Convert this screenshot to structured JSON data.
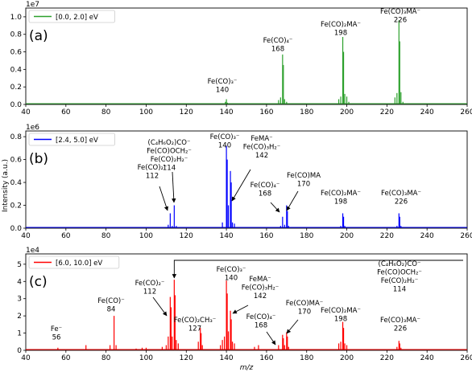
{
  "chart_data": [
    {
      "type": "line",
      "panel_label": "(a)",
      "legend": "[0.0, 2.0] eV",
      "color": "#2ca02c",
      "multiplier": "1e7",
      "ylim": [
        0,
        11000000.0
      ],
      "yticks": [
        "0.0",
        "0.2",
        "0.4",
        "0.6",
        "0.8",
        "1.0"
      ],
      "xlim": [
        40,
        260
      ],
      "xticks": [
        "40",
        "60",
        "80",
        "100",
        "120",
        "140",
        "160",
        "180",
        "200",
        "220",
        "240",
        "260"
      ],
      "peaks": [
        [
          139.5,
          300000.0
        ],
        [
          140,
          600000.0
        ],
        [
          140.5,
          200000.0
        ],
        [
          166,
          500000.0
        ],
        [
          167,
          800000.0
        ],
        [
          168,
          5700000.0
        ],
        [
          168.4,
          4500000.0
        ],
        [
          169,
          600000.0
        ],
        [
          170,
          300000.0
        ],
        [
          196,
          600000.0
        ],
        [
          197,
          900000.0
        ],
        [
          198,
          7700000.0
        ],
        [
          198.4,
          6000000.0
        ],
        [
          199,
          1200000.0
        ],
        [
          200,
          900000.0
        ],
        [
          201,
          300000.0
        ],
        [
          224,
          800000.0
        ],
        [
          225,
          1300000.0
        ],
        [
          226,
          9600000.0
        ],
        [
          226.4,
          7200000.0
        ],
        [
          227,
          1400000.0
        ],
        [
          228,
          300000.0
        ]
      ],
      "annotations": [
        {
          "lines": [
            "Fe(CO)₃⁻",
            "140"
          ]
        },
        {
          "lines": [
            "Fe(CO)₄⁻",
            "168"
          ]
        },
        {
          "lines": [
            "Fe(CO)₂MA⁻",
            "198"
          ]
        },
        {
          "lines": [
            "Fe(CO)₃MA⁻",
            "226"
          ]
        }
      ]
    },
    {
      "type": "line",
      "panel_label": "(b)",
      "legend": "[2.4, 5.0] eV",
      "color": "#0000ff",
      "multiplier": "1e6",
      "ylim": [
        0,
        850000.0
      ],
      "yticks": [
        "0.0",
        "0.2",
        "0.4",
        "0.6",
        "0.8"
      ],
      "xlim": [
        40,
        260
      ],
      "xticks": [
        "40",
        "60",
        "80",
        "100",
        "120",
        "140",
        "160",
        "180",
        "200",
        "220",
        "240",
        "260"
      ],
      "peaks": [
        [
          84,
          10000.0
        ],
        [
          111,
          30000.0
        ],
        [
          112,
          130000.0
        ],
        [
          113,
          20000.0
        ],
        [
          114,
          200000.0
        ],
        [
          115,
          20000.0
        ],
        [
          138,
          50000.0
        ],
        [
          140,
          720000.0
        ],
        [
          140.4,
          600000.0
        ],
        [
          141,
          200000.0
        ],
        [
          142,
          500000.0
        ],
        [
          142.4,
          400000.0
        ],
        [
          143,
          50000.0
        ],
        [
          144,
          40000.0
        ],
        [
          167,
          20000.0
        ],
        [
          168,
          100000.0
        ],
        [
          169,
          30000.0
        ],
        [
          170,
          200000.0
        ],
        [
          170.4,
          150000.0
        ],
        [
          171,
          20000.0
        ],
        [
          197,
          20000.0
        ],
        [
          198,
          130000.0
        ],
        [
          198.4,
          100000.0
        ],
        [
          199,
          20000.0
        ],
        [
          225,
          20000.0
        ],
        [
          226,
          130000.0
        ],
        [
          226.4,
          100000.0
        ],
        [
          227,
          20000.0
        ]
      ],
      "annotations": [
        {
          "lines": [
            "(C₄H₆O₂)CO⁻",
            "Fe(CO)OCH₂⁻",
            "Fe(CO)₂H₂⁻",
            "114"
          ]
        },
        {
          "lines": [
            "Fe(CO)₃⁻",
            "140"
          ]
        },
        {
          "lines": [
            "FeMA⁻",
            "Fe(CO)₃H₂⁻",
            "142"
          ]
        },
        {
          "lines": [
            "Fe(CO)₂⁻",
            "112"
          ]
        },
        {
          "lines": [
            "Fe(CO)₄⁻",
            "168"
          ]
        },
        {
          "lines": [
            "Fe(CO)MA",
            "170"
          ]
        },
        {
          "lines": [
            "Fe(CO)₂MA⁻",
            "198"
          ]
        },
        {
          "lines": [
            "Fe(CO)₃MA⁻",
            "226"
          ]
        }
      ]
    },
    {
      "type": "line",
      "panel_label": "(c)",
      "legend": "[6.0, 10.0] eV",
      "color": "#ff0000",
      "multiplier": "1e4",
      "ylim": [
        0,
        56000.0
      ],
      "yticks": [
        "0",
        "1",
        "2",
        "3",
        "4",
        "5"
      ],
      "xlim": [
        40,
        260
      ],
      "xticks": [
        "40",
        "60",
        "80",
        "100",
        "120",
        "140",
        "160",
        "180",
        "200",
        "220",
        "240",
        "260"
      ],
      "peaks": [
        [
          56,
          1500.0
        ],
        [
          70,
          3000.0
        ],
        [
          82,
          3000.0
        ],
        [
          84,
          20000.0
        ],
        [
          85,
          3000.0
        ],
        [
          95,
          1000.0
        ],
        [
          98,
          1500.0
        ],
        [
          100,
          1500.0
        ],
        [
          108,
          2000.0
        ],
        [
          110,
          3000.0
        ],
        [
          111,
          8000.0
        ],
        [
          112,
          31000.0
        ],
        [
          112.4,
          25000.0
        ],
        [
          113,
          8000.0
        ],
        [
          114,
          41000.0
        ],
        [
          114.4,
          32000.0
        ],
        [
          115,
          6000.0
        ],
        [
          116,
          4000.0
        ],
        [
          126,
          5000.0
        ],
        [
          127,
          13000.0
        ],
        [
          127.4,
          10000.0
        ],
        [
          128,
          3000.0
        ],
        [
          137,
          3000.0
        ],
        [
          138,
          6000.0
        ],
        [
          139,
          8000.0
        ],
        [
          140,
          40500.0
        ],
        [
          140.4,
          33000.0
        ],
        [
          141,
          11000.0
        ],
        [
          142,
          23000.0
        ],
        [
          142.4,
          18000.0
        ],
        [
          143,
          5000.0
        ],
        [
          144,
          4000.0
        ],
        [
          154,
          2000.0
        ],
        [
          156,
          3000.0
        ],
        [
          166,
          3000.0
        ],
        [
          168,
          9000.0
        ],
        [
          168.4,
          7000.0
        ],
        [
          169,
          3000.0
        ],
        [
          170,
          10500.0
        ],
        [
          170.4,
          8000.0
        ],
        [
          171,
          2000.0
        ],
        [
          196,
          4000.0
        ],
        [
          197,
          5000.0
        ],
        [
          198,
          16500.0
        ],
        [
          198.4,
          13000.0
        ],
        [
          199,
          4000.0
        ],
        [
          200,
          3000.0
        ],
        [
          225,
          2000.0
        ],
        [
          226,
          5500.0
        ],
        [
          226.4,
          4000.0
        ],
        [
          227,
          1500.0
        ]
      ],
      "annotations": [
        {
          "lines": [
            "Fe⁻",
            "56"
          ]
        },
        {
          "lines": [
            "Fe(CO)⁻",
            "84"
          ]
        },
        {
          "lines": [
            "Fe(CO)₂⁻",
            "112"
          ]
        },
        {
          "lines": [
            "Fe(CO)₂CH₃⁻",
            "127"
          ]
        },
        {
          "lines": [
            "Fe(CO)₃⁻",
            "140"
          ]
        },
        {
          "lines": [
            "FeMA⁻",
            "Fe(CO)₃H₂⁻",
            "142"
          ]
        },
        {
          "lines": [
            "Fe(CO)₄⁻",
            "168"
          ]
        },
        {
          "lines": [
            "Fe(CO)MA⁻",
            "170"
          ]
        },
        {
          "lines": [
            "Fe(CO)₂MA⁻",
            "198"
          ]
        },
        {
          "lines": [
            "Fe(CO)₃MA⁻",
            "226"
          ]
        },
        {
          "lines": [
            "(C₄H₆O₂)CO⁻",
            "Fe(CO)OCH₂⁻",
            "Fe(CO)₂H₂⁻",
            "114"
          ]
        }
      ]
    }
  ],
  "axes": {
    "ylabel": "Intensity (a.u.)",
    "xlabel": "m/z"
  }
}
